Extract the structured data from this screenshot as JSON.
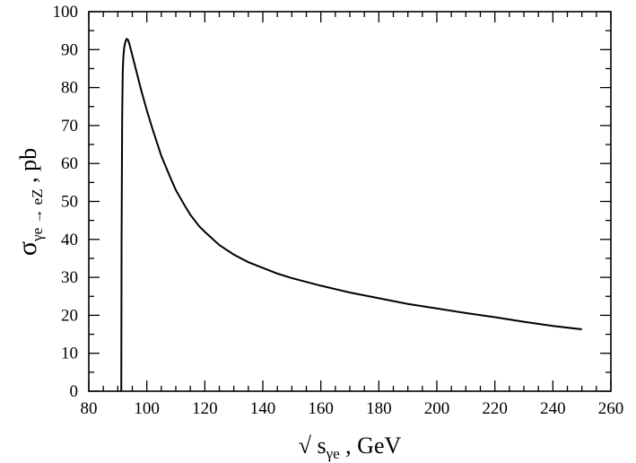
{
  "chart_data": {
    "type": "line",
    "title": "",
    "xlabel": {
      "prefix": "√ s",
      "subscript": "γe",
      "suffix": " , GeV"
    },
    "ylabel": {
      "prefix": "σ",
      "subscript": "γe → eZ",
      "suffix": " , pb"
    },
    "xlim": [
      80,
      260
    ],
    "ylim": [
      0,
      100
    ],
    "x_ticks_major": [
      80,
      100,
      120,
      140,
      160,
      180,
      200,
      220,
      240,
      260
    ],
    "x_ticks_minor_step": 5,
    "y_ticks_major": [
      0,
      10,
      20,
      30,
      40,
      50,
      60,
      70,
      80,
      90,
      100
    ],
    "y_ticks_minor_step": 5,
    "grid": false,
    "series": [
      {
        "color": "#000000",
        "x": [
          91.2,
          91.3,
          91.5,
          91.7,
          91.9,
          92.2,
          92.6,
          93.0,
          93.5,
          94.0,
          95.0,
          96.0,
          97.0,
          98.0,
          100,
          102,
          105,
          108,
          110,
          113,
          115,
          118,
          120,
          125,
          130,
          135,
          140,
          145,
          150,
          155,
          160,
          170,
          180,
          190,
          200,
          210,
          220,
          230,
          240,
          250
        ],
        "y": [
          0,
          40,
          72,
          84,
          88,
          90.5,
          92.0,
          92.8,
          92.6,
          91.5,
          88.5,
          85.5,
          82.5,
          79.5,
          74,
          69,
          62,
          56.5,
          53,
          49,
          46.5,
          43.5,
          42,
          38.5,
          36,
          34,
          32.5,
          31,
          29.8,
          28.8,
          27.8,
          26,
          24.5,
          23,
          21.8,
          20.6,
          19.5,
          18.3,
          17.2,
          16.3
        ]
      }
    ]
  }
}
